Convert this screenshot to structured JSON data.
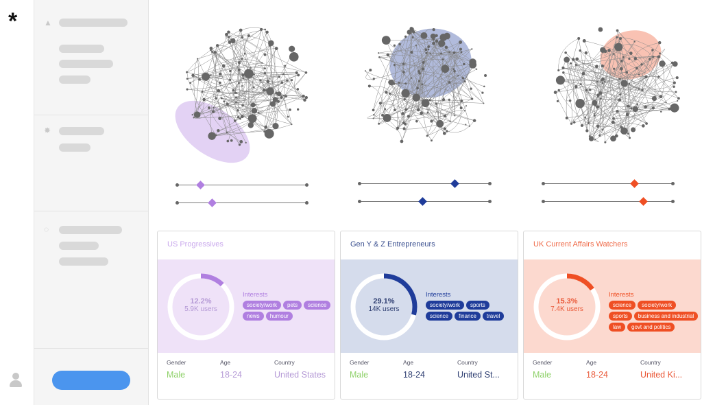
{
  "app": {
    "logo": "*"
  },
  "sidebar": {
    "sections": [
      {
        "icon": "triangle-icon"
      },
      {
        "icon": "gear-icon"
      },
      {
        "icon": "tag-icon"
      }
    ],
    "cta_label": "",
    "user_icon": "user-icon"
  },
  "segments": [
    {
      "title": "US Progressives",
      "percent": "12.2%",
      "percent_value": 12.2,
      "users": "5.9K users",
      "interests_label": "Interests",
      "interests": [
        "society/work",
        "pets",
        "science",
        "news",
        "humour"
      ],
      "gender_label": "Gender",
      "gender": "Male",
      "age_label": "Age",
      "age": "18-24",
      "country_label": "Country",
      "country": "United States",
      "accent": "#b07fe0",
      "band": "#efe2f8",
      "title_color": "#c9a8ec",
      "text_color": "#b59ad6",
      "sliders": [
        0.18,
        0.27
      ]
    },
    {
      "title": "Gen Y & Z Entrepreneurs",
      "percent": "29.1%",
      "percent_value": 29.1,
      "users": "14K users",
      "interests_label": "Interests",
      "interests": [
        "society/work",
        "sports",
        "science",
        "finance",
        "travel"
      ],
      "gender_label": "Gender",
      "gender": "Male",
      "age_label": "Age",
      "age": "18-24",
      "country_label": "Country",
      "country": "United St...",
      "accent": "#1f3c9a",
      "band": "#d5dcec",
      "title_color": "#3a4f8f",
      "text_color": "#2f3f72",
      "sliders": [
        0.73,
        0.48
      ]
    },
    {
      "title": "UK Current Affairs Watchers",
      "percent": "15.3%",
      "percent_value": 15.3,
      "users": "7.4K users",
      "interests_label": "Interests",
      "interests": [
        "science",
        "society/work",
        "sports",
        "business and industrial",
        "law",
        "govt and politics"
      ],
      "gender_label": "Gender",
      "gender": "Male",
      "age_label": "Age",
      "age": "18-24",
      "country_label": "Country",
      "country": "United Ki...",
      "accent": "#ef4f24",
      "band": "#fcd9cf",
      "title_color": "#ef6a48",
      "text_color": "#ea5a3a",
      "sliders": [
        0.7,
        0.77
      ]
    }
  ],
  "gender_color": "#8fd16a"
}
